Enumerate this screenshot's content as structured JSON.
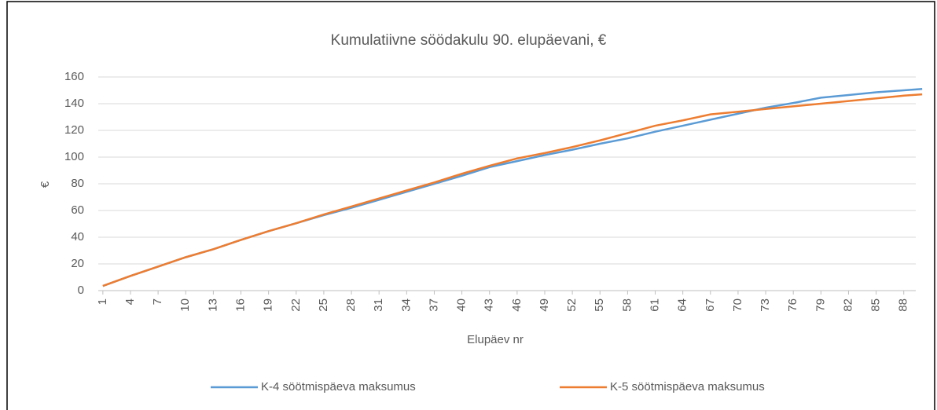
{
  "chart_data": {
    "type": "line",
    "title": "Kumulatiivne söödakulu 90. elupäevani, €",
    "x_label": "Elupäev nr",
    "y_label": "€",
    "x": [
      1,
      4,
      7,
      10,
      13,
      16,
      19,
      22,
      25,
      28,
      31,
      34,
      37,
      40,
      43,
      46,
      49,
      52,
      55,
      58,
      61,
      64,
      67,
      70,
      73,
      76,
      79,
      82,
      85,
      88,
      90
    ],
    "series": [
      {
        "name": "K-4 söötmispäeva maksumus",
        "color": "#5b9bd5",
        "values": [
          3.5,
          11,
          18,
          25,
          31,
          38,
          44.5,
          50.5,
          56.5,
          62,
          68,
          74,
          80,
          86,
          92.5,
          97,
          101.5,
          105.5,
          110,
          114,
          119,
          123.5,
          128,
          132.5,
          137,
          140.5,
          144.5,
          146.5,
          148.5,
          150,
          151
        ]
      },
      {
        "name": "K-5 söötmispäeva maksumus",
        "color": "#ed7d31",
        "values": [
          3.5,
          11,
          18,
          25,
          31,
          38,
          44.5,
          50.5,
          57,
          63,
          69,
          75,
          81,
          87.5,
          93.5,
          99,
          103,
          107.5,
          112.5,
          118,
          123.5,
          127.5,
          132,
          134,
          136,
          138,
          140,
          142,
          144,
          146,
          147
        ]
      }
    ],
    "xlim": [
      0.5,
      90.5
    ],
    "xticks": [
      1,
      4,
      7,
      10,
      13,
      16,
      19,
      22,
      25,
      28,
      31,
      34,
      37,
      40,
      43,
      46,
      49,
      52,
      55,
      58,
      61,
      64,
      67,
      70,
      73,
      76,
      79,
      82,
      85,
      88
    ],
    "ylim": [
      0,
      160
    ],
    "yticks": [
      0,
      20,
      40,
      60,
      80,
      100,
      120,
      140,
      160
    ],
    "grid": true,
    "legend": "bottom"
  }
}
